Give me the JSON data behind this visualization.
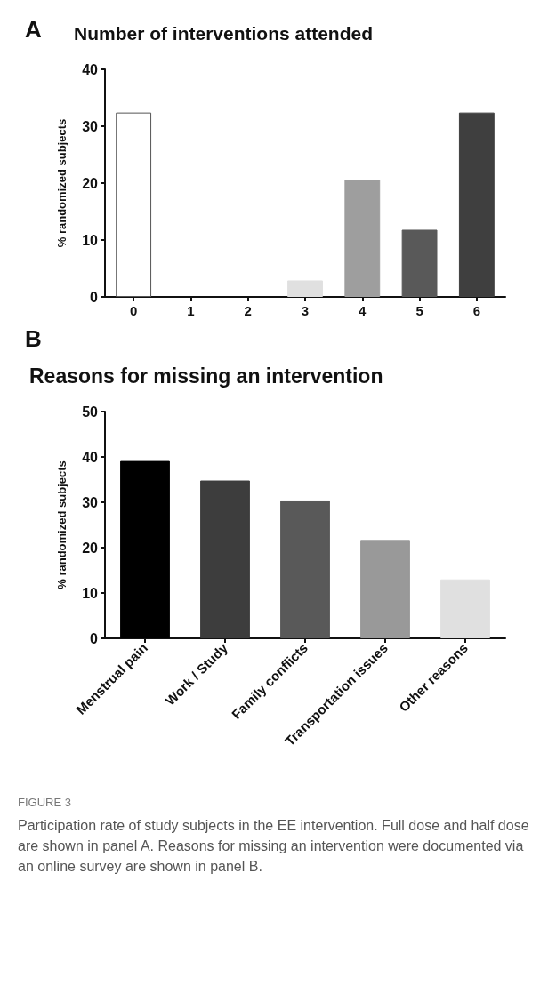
{
  "chart_data": [
    {
      "type": "bar",
      "title": "Number of interventions attended",
      "ylabel": "% randomized subjects",
      "categories": [
        "0",
        "1",
        "2",
        "3",
        "4",
        "5",
        "6"
      ],
      "values": [
        32.4,
        0,
        0,
        2.9,
        20.6,
        11.8,
        32.4
      ],
      "colors": [
        "#ffffff",
        "#9e9e9e",
        "#9e9e9e",
        "#e0e0e0",
        "#9e9e9e",
        "#595959",
        "#3f3f3f"
      ],
      "ylim": [
        0,
        40
      ],
      "yticks": [
        0,
        10,
        20,
        30,
        40
      ],
      "grid": false,
      "annotations": [
        "A"
      ]
    },
    {
      "type": "bar",
      "title": "Reasons for missing an intervention",
      "ylabel": "% randomized subjects",
      "categories": [
        "Menstrual pain",
        "Work / Study",
        "Family conflicts",
        "Transportation issues",
        "Other reasons"
      ],
      "values": [
        39.1,
        34.8,
        30.4,
        21.7,
        13.0
      ],
      "colors": [
        "#000000",
        "#3d3d3d",
        "#595959",
        "#999999",
        "#e0e0e0"
      ],
      "ylim": [
        0,
        50
      ],
      "yticks": [
        0,
        10,
        20,
        30,
        40,
        50
      ],
      "grid": false,
      "annotations": [
        "B",
        "FIGURE 3",
        "Participation rate of study subjects in the EE intervention. Full dose and half dose are shown in panel A. Reasons for missing an intervention were documented via an online survey are shown in panel B."
      ]
    }
  ]
}
